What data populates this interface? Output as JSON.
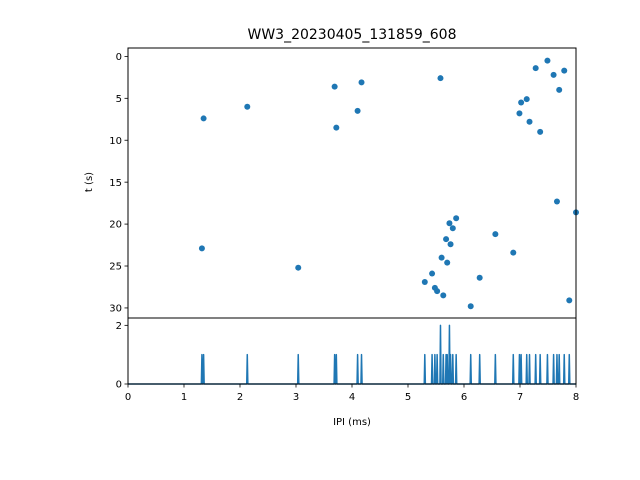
{
  "chart_data": [
    {
      "type": "scatter",
      "title": "WW3_20230405_131859_608",
      "xlabel": "",
      "ylabel": "t (s)",
      "xlim": [
        0,
        8
      ],
      "ylim": [
        31.2,
        -1.0
      ],
      "y_inverted": true,
      "yticks": [
        0,
        5,
        10,
        15,
        20,
        25,
        30
      ],
      "color": "#1f77b4",
      "points": [
        [
          1.35,
          7.4
        ],
        [
          1.32,
          22.9
        ],
        [
          2.13,
          6.0
        ],
        [
          3.04,
          25.2
        ],
        [
          3.69,
          3.6
        ],
        [
          3.72,
          8.5
        ],
        [
          4.1,
          6.5
        ],
        [
          4.17,
          3.1
        ],
        [
          5.3,
          26.9
        ],
        [
          5.43,
          25.9
        ],
        [
          5.48,
          27.6
        ],
        [
          5.52,
          28.0
        ],
        [
          5.58,
          2.6
        ],
        [
          5.6,
          24.0
        ],
        [
          5.63,
          28.5
        ],
        [
          5.68,
          21.8
        ],
        [
          5.7,
          24.6
        ],
        [
          5.74,
          19.9
        ],
        [
          5.76,
          22.4
        ],
        [
          5.8,
          20.5
        ],
        [
          5.86,
          19.3
        ],
        [
          6.12,
          29.8
        ],
        [
          6.28,
          26.4
        ],
        [
          6.56,
          21.2
        ],
        [
          6.88,
          23.4
        ],
        [
          6.99,
          6.8
        ],
        [
          7.02,
          5.5
        ],
        [
          7.12,
          5.1
        ],
        [
          7.17,
          7.8
        ],
        [
          7.28,
          1.4
        ],
        [
          7.36,
          9.0
        ],
        [
          7.49,
          0.5
        ],
        [
          7.6,
          2.2
        ],
        [
          7.66,
          17.3
        ],
        [
          7.7,
          4.0
        ],
        [
          7.79,
          1.7
        ],
        [
          7.88,
          29.1
        ],
        [
          8.0,
          18.6
        ]
      ]
    },
    {
      "type": "line",
      "xlabel": "IPI (ms)",
      "ylabel": "",
      "xlim": [
        0,
        8
      ],
      "ylim": [
        0,
        2.25
      ],
      "xticks": [
        0,
        1,
        2,
        3,
        4,
        5,
        6,
        7,
        8
      ],
      "yticks": [
        0,
        2
      ],
      "color": "#1f77b4",
      "bin_width": 0.02,
      "peaks": [
        [
          1.32,
          1
        ],
        [
          1.35,
          1
        ],
        [
          2.13,
          1
        ],
        [
          3.04,
          1
        ],
        [
          3.69,
          1
        ],
        [
          3.72,
          1
        ],
        [
          4.1,
          1
        ],
        [
          4.17,
          1
        ],
        [
          5.3,
          1
        ],
        [
          5.43,
          1
        ],
        [
          5.48,
          1
        ],
        [
          5.52,
          1
        ],
        [
          5.58,
          2
        ],
        [
          5.63,
          1
        ],
        [
          5.68,
          1
        ],
        [
          5.7,
          1
        ],
        [
          5.74,
          2
        ],
        [
          5.76,
          1
        ],
        [
          5.8,
          1
        ],
        [
          5.86,
          1
        ],
        [
          6.12,
          1
        ],
        [
          6.28,
          1
        ],
        [
          6.56,
          1
        ],
        [
          6.88,
          1
        ],
        [
          6.99,
          1
        ],
        [
          7.02,
          1
        ],
        [
          7.12,
          1
        ],
        [
          7.17,
          1
        ],
        [
          7.28,
          1
        ],
        [
          7.36,
          1
        ],
        [
          7.49,
          1
        ],
        [
          7.6,
          1
        ],
        [
          7.66,
          1
        ],
        [
          7.7,
          1
        ],
        [
          7.79,
          1
        ],
        [
          7.88,
          1
        ]
      ]
    }
  ]
}
